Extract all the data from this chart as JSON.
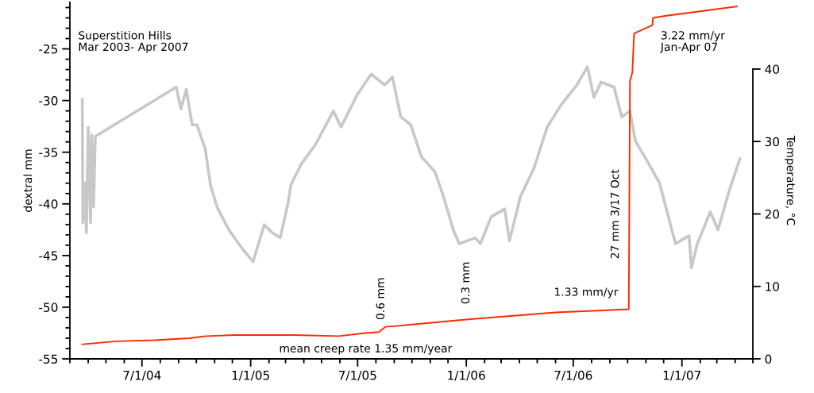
{
  "chart_data": {
    "type": "line",
    "ylabel": "dextral mm",
    "y2label": "Temperature, °C",
    "xlim": [
      "2004-03-01",
      "2007-05-01"
    ],
    "xticks": [
      {
        "value": "2004-03-01",
        "label": null
      },
      {
        "value": "2004-04-01",
        "label": null
      },
      {
        "value": "2004-05-01",
        "label": null
      },
      {
        "value": "2004-06-01",
        "label": null
      },
      {
        "value": "2004-07-01",
        "label": "7/1/04"
      },
      {
        "value": "2004-08-01",
        "label": null
      },
      {
        "value": "2004-09-01",
        "label": null
      },
      {
        "value": "2004-10-01",
        "label": null
      },
      {
        "value": "2004-11-01",
        "label": null
      },
      {
        "value": "2004-12-01",
        "label": null
      },
      {
        "value": "2005-01-01",
        "label": "1/1/05"
      },
      {
        "value": "2005-02-01",
        "label": null
      },
      {
        "value": "2005-03-01",
        "label": null
      },
      {
        "value": "2005-04-01",
        "label": null
      },
      {
        "value": "2005-05-01",
        "label": null
      },
      {
        "value": "2005-06-01",
        "label": null
      },
      {
        "value": "2005-07-01",
        "label": "7/1/05"
      },
      {
        "value": "2005-08-01",
        "label": null
      },
      {
        "value": "2005-09-01",
        "label": null
      },
      {
        "value": "2005-10-01",
        "label": null
      },
      {
        "value": "2005-11-01",
        "label": null
      },
      {
        "value": "2005-12-01",
        "label": null
      },
      {
        "value": "2006-01-01",
        "label": "1/1/06"
      },
      {
        "value": "2006-02-01",
        "label": null
      },
      {
        "value": "2006-03-01",
        "label": null
      },
      {
        "value": "2006-04-01",
        "label": null
      },
      {
        "value": "2006-05-01",
        "label": null
      },
      {
        "value": "2006-06-01",
        "label": null
      },
      {
        "value": "2006-07-01",
        "label": "7/1/06"
      },
      {
        "value": "2006-08-01",
        "label": null
      },
      {
        "value": "2006-09-01",
        "label": null
      },
      {
        "value": "2006-10-01",
        "label": null
      },
      {
        "value": "2006-11-01",
        "label": null
      },
      {
        "value": "2006-12-01",
        "label": null
      },
      {
        "value": "2007-01-01",
        "label": "1/1/07"
      },
      {
        "value": "2007-02-01",
        "label": null
      },
      {
        "value": "2007-03-01",
        "label": null
      },
      {
        "value": "2007-04-01",
        "label": null
      },
      {
        "value": "2007-05-01",
        "label": null
      }
    ],
    "ylim": [
      -55,
      -20.5
    ],
    "yticks": [
      -55,
      {
        "value": -54,
        "label": null
      },
      {
        "value": -53,
        "label": null
      },
      {
        "value": -52,
        "label": null
      },
      {
        "value": -51,
        "label": null
      },
      -50,
      {
        "value": -49,
        "label": null
      },
      {
        "value": -48,
        "label": null
      },
      {
        "value": -47,
        "label": null
      },
      {
        "value": -46,
        "label": null
      },
      -45,
      {
        "value": -44,
        "label": null
      },
      {
        "value": -43,
        "label": null
      },
      {
        "value": -42,
        "label": null
      },
      {
        "value": -41,
        "label": null
      },
      -40,
      {
        "value": -39,
        "label": null
      },
      {
        "value": -38,
        "label": null
      },
      {
        "value": -37,
        "label": null
      },
      {
        "value": -36,
        "label": null
      },
      -35,
      {
        "value": -34,
        "label": null
      },
      {
        "value": -33,
        "label": null
      },
      {
        "value": -32,
        "label": null
      },
      {
        "value": -31,
        "label": null
      },
      -30,
      {
        "value": -29,
        "label": null
      },
      {
        "value": -28,
        "label": null
      },
      {
        "value": -27,
        "label": null
      },
      {
        "value": -26,
        "label": null
      },
      -25,
      {
        "value": -24,
        "label": null
      },
      {
        "value": -23,
        "label": null
      },
      {
        "value": -22,
        "label": null
      },
      {
        "value": -21,
        "label": null
      }
    ],
    "y2lim": [
      0,
      49.2
    ],
    "y2ticks": [
      0,
      10,
      20,
      30,
      40
    ],
    "grid": false,
    "legend": false,
    "marker": "none",
    "line_style": "solid",
    "series": [
      {
        "color": "#c8c8c8",
        "axis": "y2",
        "x": [
          "2004-03-22",
          "2004-03-23",
          "2004-03-26",
          "2004-03-29",
          "2004-04-01",
          "2004-04-05",
          "2004-04-07",
          "2004-04-10",
          "2004-04-13",
          "2004-08-28",
          "2004-09-05",
          "2004-09-14",
          "2004-09-24",
          "2004-10-02",
          "2004-10-16",
          "2004-10-25",
          "2004-11-05",
          "2004-11-25",
          "2004-12-18",
          "2005-01-05",
          "2005-01-24",
          "2005-02-07",
          "2005-02-20",
          "2005-03-06",
          "2005-03-10",
          "2005-03-27",
          "2005-04-20",
          "2005-05-21",
          "2005-06-03",
          "2005-06-30",
          "2005-07-24",
          "2005-08-16",
          "2005-08-29",
          "2005-09-12",
          "2005-09-29",
          "2005-10-17",
          "2005-11-09",
          "2005-11-23",
          "2005-12-10",
          "2005-12-20",
          "2006-01-16",
          "2006-01-25",
          "2006-02-12",
          "2006-03-07",
          "2006-03-15",
          "2006-04-03",
          "2006-04-25",
          "2006-05-18",
          "2006-06-10",
          "2006-07-07",
          "2006-07-25",
          "2006-08-05",
          "2006-08-17",
          "2006-09-08",
          "2006-09-21",
          "2006-10-05",
          "2006-10-14",
          "2006-11-01",
          "2006-11-24",
          "2006-12-21",
          "2007-01-13",
          "2007-01-17",
          "2007-01-27",
          "2007-02-18",
          "2007-03-03",
          "2007-03-22",
          "2007-04-09"
        ],
        "values": [
          35.8,
          18.8,
          24.3,
          17.4,
          32.0,
          18.8,
          30.9,
          21.0,
          30.7,
          37.5,
          34.5,
          37.2,
          32.3,
          32.3,
          29.0,
          24.0,
          21.0,
          17.8,
          15.2,
          13.4,
          18.5,
          17.4,
          16.7,
          21.8,
          24.0,
          26.8,
          29.5,
          34.2,
          32.0,
          36.4,
          39.3,
          37.8,
          38.9,
          33.4,
          32.3,
          27.9,
          25.8,
          22.5,
          17.8,
          15.9,
          16.7,
          15.9,
          19.6,
          20.7,
          16.3,
          22.5,
          26.2,
          32.0,
          35.0,
          37.8,
          40.3,
          36.1,
          38.2,
          37.5,
          33.4,
          34.2,
          30.1,
          27.6,
          24.3,
          15.9,
          17.0,
          12.6,
          15.9,
          20.3,
          17.8,
          23.2,
          27.6
        ]
      },
      {
        "color": "#ff2a00",
        "axis": "y",
        "x": [
          "2004-03-22",
          "2004-05-18",
          "2004-07-22",
          "2004-09-19",
          "2004-10-18",
          "2004-12-05",
          "2005-03-14",
          "2005-05-30",
          "2005-07-14",
          "2005-08-06",
          "2005-08-17",
          "2005-09-09",
          "2005-12-31",
          "2006-06-01",
          "2006-10-03",
          "2006-10-05",
          "2006-10-09",
          "2006-10-12",
          "2006-11-12",
          "2006-11-13",
          "2006-12-04",
          "2007-04-04"
        ],
        "values": [
          -53.6,
          -53.3,
          -53.2,
          -53.0,
          -52.8,
          -52.7,
          -52.7,
          -52.8,
          -52.5,
          -52.4,
          -51.9,
          -51.8,
          -51.2,
          -50.5,
          -50.2,
          -28.1,
          -27.3,
          -23.5,
          -22.7,
          -22.0,
          -21.8,
          -20.9
        ]
      }
    ],
    "annotations": [
      "Superstition Hills\nMar 2003- Apr 2007",
      {
        "text": "0.6 mm",
        "x": "2005-08-10",
        "y": -52.3
      },
      {
        "text": "0.3 mm",
        "x": "2006-01-01",
        "y": -51.2
      },
      {
        "text": "1.33 mm/yr",
        "x": "2006-08-01",
        "y": -50.4
      },
      {
        "text": "27 mm 3/17 Oct",
        "x": "2006-10-03",
        "y": -41
      },
      "3.22 mm/yr\nJan-Apr 07",
      "mean creep rate 1.35 mm/year"
    ]
  }
}
